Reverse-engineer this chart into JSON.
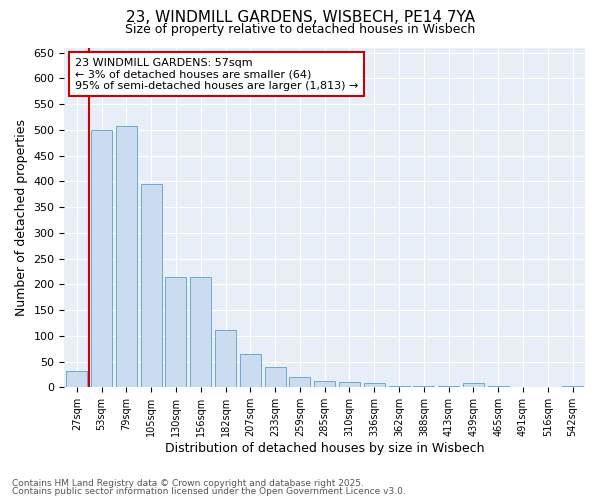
{
  "title_line1": "23, WINDMILL GARDENS, WISBECH, PE14 7YA",
  "title_line2": "Size of property relative to detached houses in Wisbech",
  "xlabel": "Distribution of detached houses by size in Wisbech",
  "ylabel": "Number of detached properties",
  "categories": [
    "27sqm",
    "53sqm",
    "79sqm",
    "105sqm",
    "130sqm",
    "156sqm",
    "182sqm",
    "207sqm",
    "233sqm",
    "259sqm",
    "285sqm",
    "310sqm",
    "336sqm",
    "362sqm",
    "388sqm",
    "413sqm",
    "439sqm",
    "465sqm",
    "491sqm",
    "516sqm",
    "542sqm"
  ],
  "values": [
    32,
    500,
    507,
    395,
    214,
    214,
    112,
    65,
    40,
    20,
    13,
    10,
    8,
    3,
    3,
    3,
    8,
    2,
    1,
    1,
    3
  ],
  "bar_color": "#ccdcf0",
  "bar_edge_color": "#6aaad4",
  "red_line_bar_index": 1,
  "annotation_title": "23 WINDMILL GARDENS: 57sqm",
  "annotation_line1": "← 3% of detached houses are smaller (64)",
  "annotation_line2": "95% of semi-detached houses are larger (1,813) →",
  "annotation_box_color": "#ffffff",
  "annotation_box_edge": "#cc0000",
  "ylim": [
    0,
    660
  ],
  "yticks": [
    0,
    50,
    100,
    150,
    200,
    250,
    300,
    350,
    400,
    450,
    500,
    550,
    600,
    650
  ],
  "footer_line1": "Contains HM Land Registry data © Crown copyright and database right 2025.",
  "footer_line2": "Contains public sector information licensed under the Open Government Licence v3.0.",
  "background_color": "#ffffff",
  "plot_bg_color": "#e8eef7"
}
